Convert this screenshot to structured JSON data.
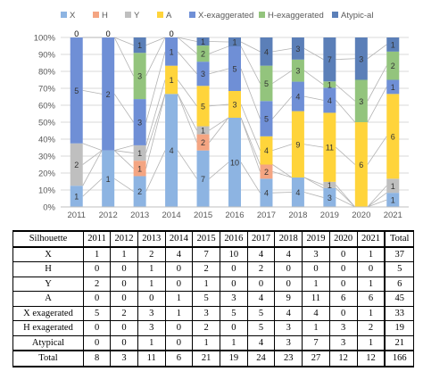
{
  "chart_data": {
    "type": "bar",
    "stacked": true,
    "normalized": true,
    "categories": [
      "2011",
      "2012",
      "2013",
      "2014",
      "2015",
      "2016",
      "2017",
      "2018",
      "2019",
      "2020",
      "2021"
    ],
    "y_ticks": [
      "0%",
      "10%",
      "20%",
      "30%",
      "40%",
      "50%",
      "60%",
      "70%",
      "80%",
      "90%",
      "100%"
    ],
    "ylim": [
      0,
      100
    ],
    "legend_position": "top",
    "series": [
      {
        "name": "X",
        "color": "#8db4e2",
        "values": [
          1,
          1,
          2,
          4,
          7,
          10,
          4,
          4,
          3,
          0,
          1
        ]
      },
      {
        "name": "H",
        "color": "#f4a582",
        "values": [
          0,
          0,
          1,
          0,
          2,
          0,
          2,
          0,
          0,
          0,
          0
        ]
      },
      {
        "name": "Y",
        "color": "#bfbfbf",
        "values": [
          2,
          0,
          1,
          0,
          1,
          0,
          0,
          0,
          1,
          0,
          1
        ]
      },
      {
        "name": "A",
        "color": "#ffd43b",
        "values": [
          0,
          0,
          0,
          1,
          5,
          3,
          4,
          9,
          11,
          6,
          6
        ]
      },
      {
        "name": "X-exaggerated",
        "color": "#6f8fd6",
        "values": [
          5,
          2,
          3,
          1,
          3,
          5,
          5,
          4,
          4,
          0,
          1
        ]
      },
      {
        "name": "H-exaggerated",
        "color": "#93c47d",
        "values": [
          0,
          0,
          3,
          0,
          2,
          0,
          5,
          3,
          1,
          3,
          2
        ]
      },
      {
        "name": "Atypic-al",
        "color": "#5b7fb8",
        "values": [
          0,
          0,
          1,
          0,
          1,
          1,
          4,
          3,
          7,
          3,
          1
        ]
      }
    ]
  },
  "table": {
    "header": [
      "Silhouette",
      "2011",
      "2012",
      "2013",
      "2014",
      "2015",
      "2016",
      "2017",
      "2018",
      "2019",
      "2020",
      "2021",
      "Total"
    ],
    "rows": [
      [
        "X",
        "1",
        "1",
        "2",
        "4",
        "7",
        "10",
        "4",
        "4",
        "3",
        "0",
        "1",
        "37"
      ],
      [
        "H",
        "0",
        "0",
        "1",
        "0",
        "2",
        "0",
        "2",
        "0",
        "0",
        "0",
        "0",
        "5"
      ],
      [
        "Y",
        "2",
        "0",
        "1",
        "0",
        "1",
        "0",
        "0",
        "0",
        "1",
        "0",
        "1",
        "6"
      ],
      [
        "A",
        "0",
        "0",
        "0",
        "1",
        "5",
        "3",
        "4",
        "9",
        "11",
        "6",
        "6",
        "45"
      ],
      [
        "X exagerated",
        "5",
        "2",
        "3",
        "1",
        "3",
        "5",
        "5",
        "4",
        "4",
        "0",
        "1",
        "33"
      ],
      [
        "H exagerated",
        "0",
        "0",
        "3",
        "0",
        "2",
        "0",
        "5",
        "3",
        "1",
        "3",
        "2",
        "19"
      ],
      [
        "Atypical",
        "0",
        "0",
        "1",
        "0",
        "1",
        "1",
        "4",
        "3",
        "7",
        "3",
        "1",
        "21"
      ]
    ],
    "total_row": [
      "Total",
      "8",
      "3",
      "11",
      "6",
      "21",
      "19",
      "24",
      "23",
      "27",
      "12",
      "12",
      "166"
    ]
  }
}
